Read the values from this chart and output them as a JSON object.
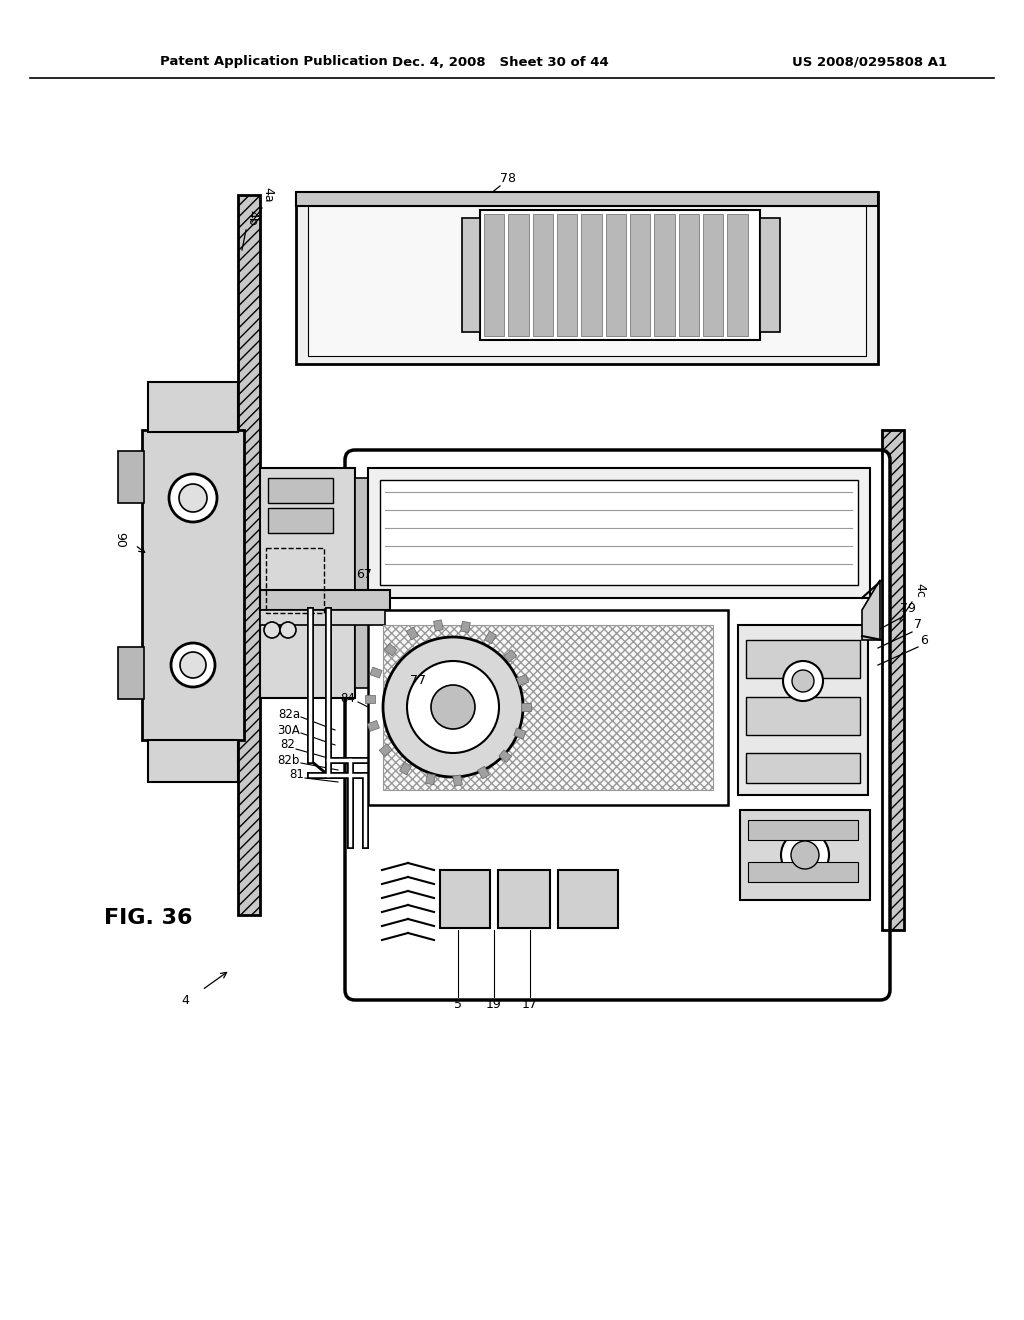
{
  "background_color": "#ffffff",
  "header_left": "Patent Application Publication",
  "header_center": "Dec. 4, 2008   Sheet 30 of 44",
  "header_right": "US 2008/0295808 A1",
  "figure_label": "FIG. 36",
  "line_color": "#000000",
  "light_gray": "#d4d4d4",
  "mid_gray": "#a8a8a8",
  "hatch_gray": "#c8c8c8",
  "dark_gray": "#909090"
}
